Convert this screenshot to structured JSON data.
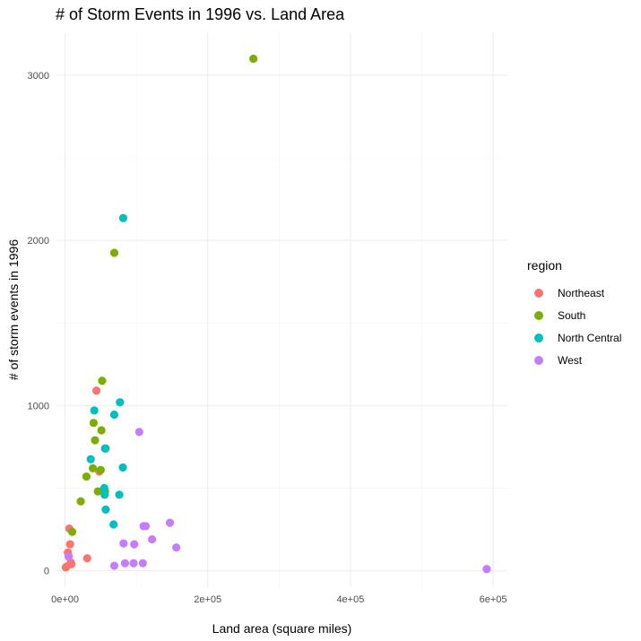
{
  "chart_data": {
    "type": "scatter",
    "title": "# of Storm Events in 1996 vs. Land Area",
    "xlabel": "Land area (square miles)",
    "ylabel": "# of storm events in 1996",
    "xlim": [
      -12000,
      620000
    ],
    "ylim": [
      -100,
      3260
    ],
    "x_ticks": [
      0,
      200000,
      400000,
      600000
    ],
    "x_tick_labels": [
      "0e+00",
      "2e+05",
      "4e+05",
      "6e+05"
    ],
    "y_ticks": [
      0,
      1000,
      2000,
      3000
    ],
    "y_tick_labels": [
      "0",
      "1000",
      "2000",
      "3000"
    ],
    "grid": true,
    "legend": {
      "title": "region",
      "placement": "right"
    },
    "series": [
      {
        "name": "Northeast",
        "color": "#F8766D",
        "points": [
          {
            "x": 1000,
            "y": 20
          },
          {
            "x": 2000,
            "y": 25
          },
          {
            "x": 4000,
            "y": 110
          },
          {
            "x": 5000,
            "y": 90
          },
          {
            "x": 6000,
            "y": 255
          },
          {
            "x": 7000,
            "y": 160
          },
          {
            "x": 8000,
            "y": 50
          },
          {
            "x": 9000,
            "y": 40
          },
          {
            "x": 31000,
            "y": 75
          },
          {
            "x": 44000,
            "y": 1090
          },
          {
            "x": 48000,
            "y": 600
          }
        ]
      },
      {
        "name": "South",
        "color": "#7CAE00",
        "points": [
          {
            "x": 10000,
            "y": 235
          },
          {
            "x": 22000,
            "y": 420
          },
          {
            "x": 30000,
            "y": 570
          },
          {
            "x": 39000,
            "y": 620
          },
          {
            "x": 40000,
            "y": 895
          },
          {
            "x": 42000,
            "y": 790
          },
          {
            "x": 46000,
            "y": 480
          },
          {
            "x": 50000,
            "y": 610
          },
          {
            "x": 51000,
            "y": 850
          },
          {
            "x": 52000,
            "y": 1150
          },
          {
            "x": 56000,
            "y": 480
          },
          {
            "x": 57000,
            "y": 740
          },
          {
            "x": 69000,
            "y": 1925
          },
          {
            "x": 264000,
            "y": 3100
          }
        ]
      },
      {
        "name": "North Central",
        "color": "#00BFC4",
        "points": [
          {
            "x": 36000,
            "y": 675
          },
          {
            "x": 41000,
            "y": 970
          },
          {
            "x": 55000,
            "y": 500
          },
          {
            "x": 55500,
            "y": 460
          },
          {
            "x": 56000,
            "y": 740
          },
          {
            "x": 57000,
            "y": 370
          },
          {
            "x": 68000,
            "y": 280
          },
          {
            "x": 69000,
            "y": 945
          },
          {
            "x": 76000,
            "y": 460
          },
          {
            "x": 77000,
            "y": 1020
          },
          {
            "x": 81000,
            "y": 625
          },
          {
            "x": 81500,
            "y": 2135
          }
        ]
      },
      {
        "name": "West",
        "color": "#C77CFF",
        "points": [
          {
            "x": 5000,
            "y": 85
          },
          {
            "x": 69000,
            "y": 30
          },
          {
            "x": 82000,
            "y": 165
          },
          {
            "x": 84000,
            "y": 45
          },
          {
            "x": 96000,
            "y": 45
          },
          {
            "x": 97000,
            "y": 160
          },
          {
            "x": 104000,
            "y": 840
          },
          {
            "x": 109000,
            "y": 45
          },
          {
            "x": 110000,
            "y": 270
          },
          {
            "x": 113000,
            "y": 270
          },
          {
            "x": 122000,
            "y": 190
          },
          {
            "x": 147000,
            "y": 290
          },
          {
            "x": 156000,
            "y": 140
          },
          {
            "x": 591000,
            "y": 10
          }
        ]
      }
    ]
  }
}
